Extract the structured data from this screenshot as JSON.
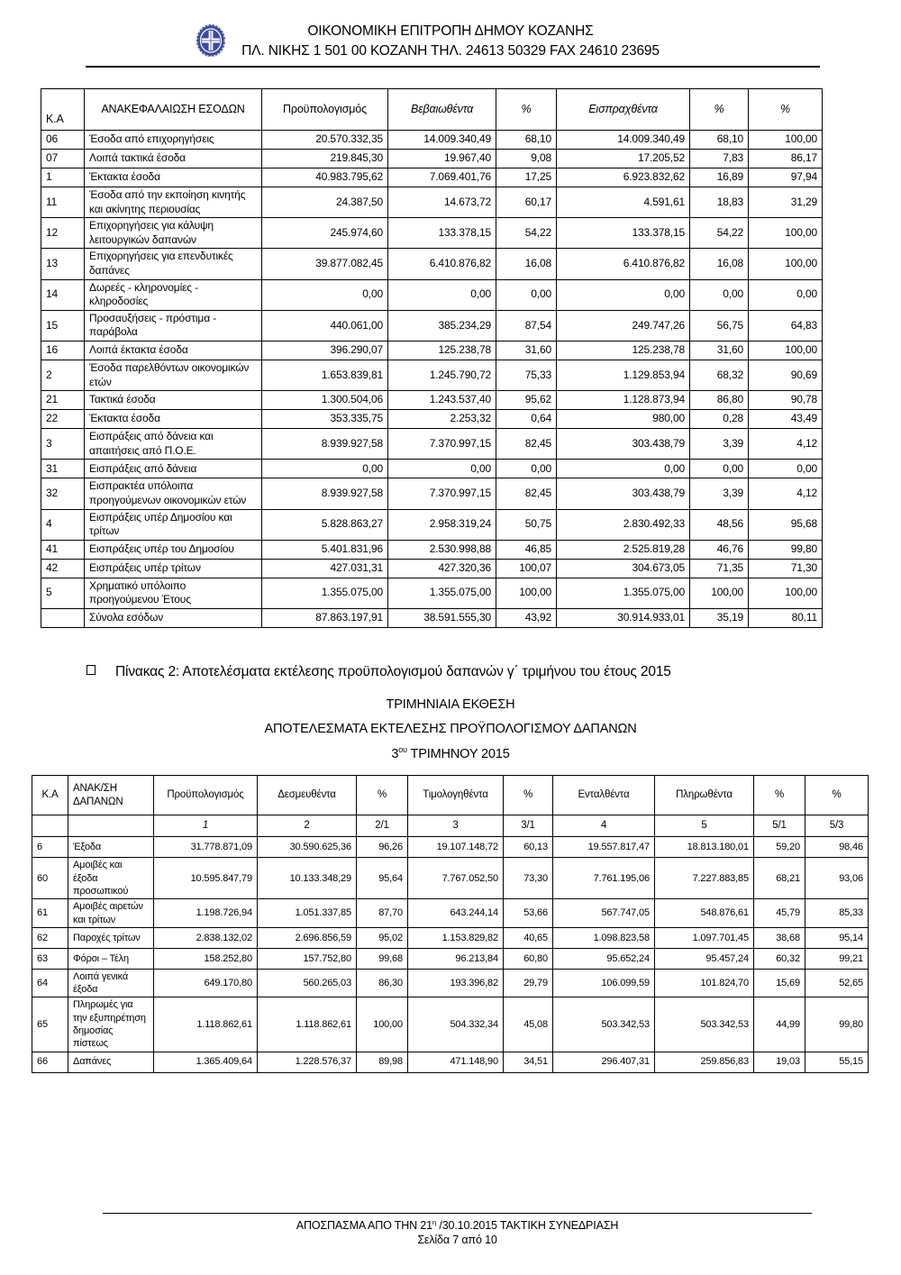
{
  "header": {
    "line1": "ΟΙΚΟΝΟΜΙΚΗ  ΕΠΙΤΡΟΠΗ  ΔΗΜΟΥ  ΚΟΖΑΝΗΣ",
    "line2": "ΠΛ. ΝΙΚΗΣ 1 501 00 ΚΟΖΑΝΗ ΤΗΛ. 24613 50329 FAX 24610 23695",
    "emblem": "greek-municipality-emblem",
    "emblem_color": "#3a4da0"
  },
  "table1": {
    "columns": [
      "Κ.Α",
      "ΑΝΑΚΕΦΑΛΑΙΩΣΗ ΕΣΟΔΩΝ",
      "Προϋπολογισμός",
      "Βεβαιωθέντα",
      "%",
      "Εισπραχθέντα",
      "%",
      "%"
    ],
    "rows": [
      [
        "06",
        "Έσοδα από επιχορηγήσεις",
        "20.570.332,35",
        "14.009.340,49",
        "68,10",
        "14.009.340,49",
        "68,10",
        "100,00"
      ],
      [
        "07",
        "Λοιπά τακτικά έσοδα",
        "219.845,30",
        "19.967,40",
        "9,08",
        "17.205,52",
        "7,83",
        "86,17"
      ],
      [
        "1",
        "Έκτακτα έσοδα",
        "40.983.795,62",
        "7.069.401,76",
        "17,25",
        "6.923.832,62",
        "16,89",
        "97,94"
      ],
      [
        "11",
        "Έσοδα από την εκποίηση κινητής και ακίνητης περιουσίας",
        "24.387,50",
        "14.673,72",
        "60,17",
        "4.591,61",
        "18,83",
        "31,29"
      ],
      [
        "12",
        "Επιχορηγήσεις για κάλυψη λειτουργικών δαπανών",
        "245.974,60",
        "133.378,15",
        "54,22",
        "133.378,15",
        "54,22",
        "100,00"
      ],
      [
        "13",
        "Επιχορηγήσεις για επενδυτικές δαπάνες",
        "39.877.082,45",
        "6.410.876,82",
        "16,08",
        "6.410.876,82",
        "16,08",
        "100,00"
      ],
      [
        "14",
        "Δωρεές - κληρονομίες - κληροδοσίες",
        "0,00",
        "0,00",
        "0,00",
        "0,00",
        "0,00",
        "0,00"
      ],
      [
        "15",
        "Προσαυξήσεις - πρόστιμα - παράβολα",
        "440.061,00",
        "385.234,29",
        "87,54",
        "249.747,26",
        "56,75",
        "64,83"
      ],
      [
        "16",
        "Λοιπά έκτακτα έσοδα",
        "396.290,07",
        "125.238,78",
        "31,60",
        "125.238,78",
        "31,60",
        "100,00"
      ],
      [
        "2",
        "Έσοδα παρελθόντων οικονομικών ετών",
        "1.653.839,81",
        "1.245.790,72",
        "75,33",
        "1.129.853,94",
        "68,32",
        "90,69"
      ],
      [
        "21",
        "Τακτικά έσοδα",
        "1.300.504,06",
        "1.243.537,40",
        "95,62",
        "1.128.873,94",
        "86,80",
        "90,78"
      ],
      [
        "22",
        "Έκτακτα έσοδα",
        "353.335,75",
        "2.253,32",
        "0,64",
        "980,00",
        "0,28",
        "43,49"
      ],
      [
        "3",
        "Εισπράξεις από δάνεια και απαιτήσεις από Π.Ο.Ε.",
        "8.939.927,58",
        "7.370.997,15",
        "82,45",
        "303.438,79",
        "3,39",
        "4,12"
      ],
      [
        "31",
        "Εισπράξεις από δάνεια",
        "0,00",
        "0,00",
        "0,00",
        "0,00",
        "0,00",
        "0,00"
      ],
      [
        "32",
        "Εισπρακτέα υπόλοιπα προηγούμενων οικονομικών ετών",
        "8.939.927,58",
        "7.370.997,15",
        "82,45",
        "303.438,79",
        "3,39",
        "4,12"
      ],
      [
        "4",
        "Εισπράξεις υπέρ Δημοσίου και τρίτων",
        "5.828.863,27",
        "2.958.319,24",
        "50,75",
        "2.830.492,33",
        "48,56",
        "95,68"
      ],
      [
        "41",
        "Εισπράξεις υπέρ του Δημοσίου",
        "5.401.831,96",
        "2.530.998,88",
        "46,85",
        "2.525.819,28",
        "46,76",
        "99,80"
      ],
      [
        "42",
        "Εισπράξεις υπέρ τρίτων",
        "427.031,31",
        "427.320,36",
        "100,07",
        "304.673,05",
        "71,35",
        "71,30"
      ],
      [
        "5",
        "Χρηματικό υπόλοιπο προηγούμενου Έτους",
        "1.355.075,00",
        "1.355.075,00",
        "100,00",
        "1.355.075,00",
        "100,00",
        "100,00"
      ],
      [
        "",
        "Σύνολα εσόδων",
        "87.863.197,91",
        "38.591.555,30",
        "43,92",
        "30.914.933,01",
        "35,19",
        "80,11"
      ]
    ]
  },
  "caption": {
    "bullet_text": "Πίνακας 2: Αποτελέσματα εκτέλεσης προϋπολογισμού δαπανών γ΄ τριμήνου του έτους 2015",
    "title1": "ΤΡΙΜΗΝΙΑΙΑ ΕΚΘΕΣΗ",
    "title2": "ΑΠΟΤΕΛΕΣΜΑΤΑ ΕΚΤΕΛΕΣΗΣ ΠΡΟΫΠΟΛΟΓΙΣΜΟΥ ΔΑΠΑΝΩΝ",
    "title3_prefix": "3",
    "title3_sup": "ου",
    "title3_suffix": " ΤΡΙΜΗΝΟΥ 2015"
  },
  "table2": {
    "columns": [
      "Κ.Α",
      "ΑΝΑΚ/ΣΗ ΔΑΠΑΝΩΝ",
      "Προϋπολογισμός",
      "Δεσμευθέντα",
      "%",
      "Τιμολογηθέντα",
      "%",
      "Ενταλθέντα",
      "Πληρωθέντα",
      "%",
      "%"
    ],
    "numbering": [
      "",
      "",
      "1",
      "2",
      "2/1",
      "3",
      "3/1",
      "4",
      "5",
      "5/1",
      "5/3"
    ],
    "rows": [
      [
        "6",
        "Έξοδα",
        "31.778.871,09",
        "30.590.625,36",
        "96,26",
        "19.107.148,72",
        "60,13",
        "19.557.817,47",
        "18.813.180,01",
        "59,20",
        "98,46"
      ],
      [
        "60",
        "Αμοιβές και έξοδα προσωπικού",
        "10.595.847,79",
        "10.133.348,29",
        "95,64",
        "7.767.052,50",
        "73,30",
        "7.761.195,06",
        "7.227.883,85",
        "68,21",
        "93,06"
      ],
      [
        "61",
        "Αμοιβές αιρετών και τρίτων",
        "1.198.726,94",
        "1.051.337,85",
        "87,70",
        "643.244,14",
        "53,66",
        "567.747,05",
        "548.876,61",
        "45,79",
        "85,33"
      ],
      [
        "62",
        "Παροχές τρίτων",
        "2.838.132,02",
        "2.696.856,59",
        "95,02",
        "1.153.829,82",
        "40,65",
        "1.098.823,58",
        "1.097.701,45",
        "38,68",
        "95,14"
      ],
      [
        "63",
        "Φόροι – Τέλη",
        "158.252,80",
        "157.752,80",
        "99,68",
        "96.213,84",
        "60,80",
        "95.652,24",
        "95.457,24",
        "60,32",
        "99,21"
      ],
      [
        "64",
        "Λοιπά γενικά έξοδα",
        "649.170,80",
        "560.265,03",
        "86,30",
        "193.396,82",
        "29,79",
        "106.099,59",
        "101.824,70",
        "15,69",
        "52,65"
      ],
      [
        "65",
        "Πληρωμές για την εξυπηρέτηση δημοσίας πίστεως",
        "1.118.862,61",
        "1.118.862,61",
        "100,00",
        "504.332,34",
        "45,08",
        "503.342,53",
        "503.342,53",
        "44,99",
        "99,80"
      ],
      [
        "66",
        "Δαπάνες",
        "1.365.409,64",
        "1.228.576,37",
        "89,98",
        "471.148,90",
        "34,51",
        "296.407,31",
        "259.856,83",
        "19,03",
        "55,15"
      ]
    ]
  },
  "footer": {
    "line1_prefix": "ΑΠΟΣΠΑΣΜΑ ΑΠΟ ΤΗΝ 21",
    "line1_sup": "η",
    "line1_suffix": " /30.10.2015  ΤΑΚΤΙΚΗ ΣΥΝΕΔΡΙΑΣΗ",
    "line2": "Σελίδα 7 από 10"
  }
}
